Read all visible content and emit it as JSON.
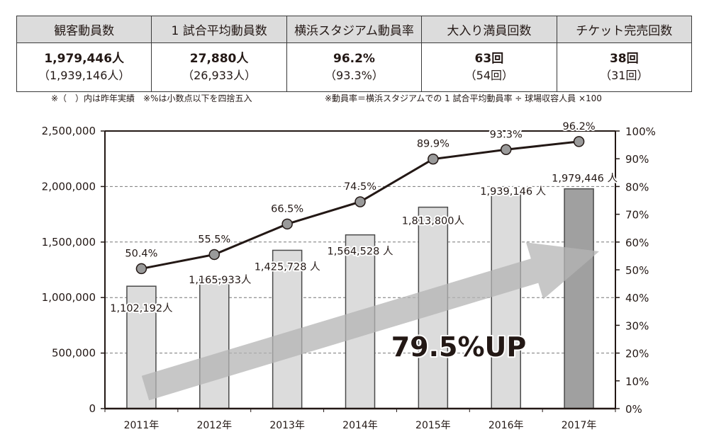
{
  "summary_table": {
    "headers": [
      "観客動員数",
      "1 試合平均動員数",
      "横浜スタジアム動員率",
      "大入り満員回数",
      "チケット完売回数"
    ],
    "current": [
      "1,979,446人",
      "27,880人",
      "96.2%",
      "63回",
      "38回"
    ],
    "previous": [
      "（1,939,146人）",
      "（26,933人）",
      "（93.3%）",
      "（54回）",
      "（31回）"
    ]
  },
  "notes": {
    "left": "※（　）内は昨年実績　※%は小数点以下を四捨五入",
    "right": "※動員率＝横浜スタジアムでの 1 試合平均動員率 ÷ 球場収容人員 ×100"
  },
  "colors": {
    "bar": "#dcdcdc",
    "bar_highlight": "#a0a0a0",
    "bar_border": "#4a4a4a",
    "line": "#231815",
    "marker": "#9a9a9a",
    "arrow": "#b4b4b4",
    "grid": "#777777"
  },
  "chart_data": {
    "type": "bar",
    "title": "",
    "categories": [
      "2011年",
      "2012年",
      "2013年",
      "2014年",
      "2015年",
      "2016年",
      "2017年"
    ],
    "series": [
      {
        "name": "観客動員数",
        "type": "bar",
        "axis": "left",
        "values": [
          1102192,
          1165933,
          1425728,
          1564528,
          1813800,
          1939146,
          1979446
        ],
        "labels": [
          "1,102,192人",
          "1,165,933人",
          "1,425,728 人",
          "1,564,528 人",
          "1,813,800人",
          "1,939,146 人",
          "1,979,446 人"
        ],
        "highlight_index": 6
      },
      {
        "name": "動員率",
        "type": "line",
        "axis": "right",
        "values": [
          50.4,
          55.5,
          66.5,
          74.5,
          89.9,
          93.3,
          96.2
        ],
        "labels": [
          "50.4%",
          "55.5%",
          "66.5%",
          "74.5%",
          "89.9%",
          "93.3%",
          "96.2%"
        ]
      }
    ],
    "y_left": {
      "range": [
        0,
        2500000
      ],
      "ticks": [
        0,
        500000,
        1000000,
        1500000,
        2000000,
        2500000
      ],
      "tick_labels": [
        "0",
        "500,000",
        "1,000,000",
        "1,500,000",
        "2,000,000",
        "2,500,000"
      ]
    },
    "y_right": {
      "range": [
        0,
        100
      ],
      "ticks": [
        0,
        10,
        20,
        30,
        40,
        50,
        60,
        70,
        80,
        90,
        100
      ],
      "tick_labels": [
        "0%",
        "10%",
        "20%",
        "30%",
        "40%",
        "50%",
        "60%",
        "70%",
        "80%",
        "90%",
        "100%"
      ]
    },
    "grid": "dashed horizontal at left-axis major ticks",
    "annotation": "79.5%UP",
    "legend": "none"
  }
}
